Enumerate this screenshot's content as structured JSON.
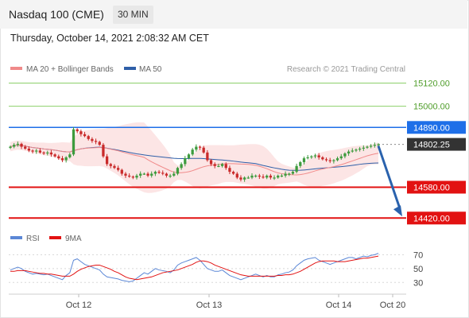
{
  "header": {
    "title": "Nasdaq 100 (CME)",
    "timeframe": "30 MIN"
  },
  "datetime": "Thursday, October 14, 2021 2:08:32 AM CET",
  "legend": {
    "ma20": "MA 20 + Bollinger Bands",
    "ma50": "MA 50",
    "credit": "Research © 2021 Trading Central"
  },
  "rsi_legend": {
    "rsi": "RSI",
    "ma9": "9MA"
  },
  "colors": {
    "resistance": "#1e6fe8",
    "support": "#e21212",
    "target_up": "#8ccf6a",
    "arrow": "#2a62ad",
    "price_tag": "#333333",
    "up_candle": "#3d9b3d",
    "down_candle": "#c92a2a",
    "bollinger": "#fbe0e0",
    "ma20": "#f08a8a",
    "ma50": "#2f5fa8"
  },
  "chart_data": {
    "type": "candlestick",
    "y_range": [
      14380,
      15155
    ],
    "levels": [
      {
        "value": 15120.0,
        "label": "15120.00",
        "kind": "target"
      },
      {
        "value": 15000.0,
        "label": "15000.00",
        "kind": "target"
      },
      {
        "value": 14890.0,
        "label": "14890.00",
        "kind": "resistance"
      },
      {
        "value": 14802.25,
        "label": "14802.25",
        "kind": "last_price"
      },
      {
        "value": 14580.0,
        "label": "14580.00",
        "kind": "support"
      },
      {
        "value": 14420.0,
        "label": "14420.00",
        "kind": "support"
      }
    ],
    "x_ticks": [
      "Oct 12",
      "Oct 13",
      "Oct 14",
      "Oct 20"
    ],
    "rsi_ticks": [
      70,
      50,
      30
    ],
    "rsi_range": [
      20,
      75
    ],
    "closes": [
      14790,
      14800,
      14805,
      14790,
      14780,
      14770,
      14765,
      14770,
      14760,
      14755,
      14760,
      14750,
      14740,
      14730,
      14720,
      14735,
      14750,
      14880,
      14870,
      14855,
      14845,
      14830,
      14820,
      14815,
      14800,
      14740,
      14700,
      14690,
      14680,
      14670,
      14650,
      14640,
      14635,
      14630,
      14640,
      14650,
      14650,
      14640,
      14650,
      14660,
      14655,
      14650,
      14640,
      14640,
      14650,
      14680,
      14700,
      14730,
      14750,
      14775,
      14790,
      14785,
      14760,
      14720,
      14700,
      14690,
      14690,
      14700,
      14680,
      14660,
      14650,
      14630,
      14620,
      14630,
      14630,
      14640,
      14640,
      14635,
      14630,
      14640,
      14630,
      14630,
      14640,
      14640,
      14650,
      14650,
      14660,
      14690,
      14710,
      14730,
      14735,
      14740,
      14745,
      14735,
      14725,
      14720,
      14715,
      14720,
      14730,
      14740,
      14755,
      14765,
      14770,
      14775,
      14780,
      14785,
      14790,
      14795,
      14800,
      14802.25
    ],
    "rsi": [
      48,
      50,
      52,
      50,
      46,
      44,
      42,
      43,
      42,
      41,
      42,
      40,
      38,
      36,
      34,
      40,
      44,
      62,
      64,
      60,
      56,
      54,
      52,
      50,
      48,
      42,
      38,
      37,
      36,
      35,
      33,
      32,
      31,
      32,
      36,
      40,
      44,
      42,
      46,
      50,
      48,
      47,
      46,
      44,
      48,
      55,
      58,
      60,
      62,
      64,
      66,
      62,
      56,
      50,
      48,
      46,
      46,
      48,
      44,
      40,
      38,
      36,
      34,
      36,
      38,
      40,
      42,
      40,
      38,
      40,
      38,
      38,
      41,
      42,
      44,
      45,
      48,
      54,
      58,
      62,
      64,
      65,
      66,
      62,
      60,
      58,
      56,
      58,
      60,
      62,
      64,
      66,
      66,
      64,
      66,
      68,
      67,
      69,
      70,
      72
    ],
    "rsi_ma9": [
      46,
      46,
      47,
      47,
      47,
      46,
      45,
      44,
      43,
      43,
      42,
      42,
      41,
      40,
      39,
      39,
      39,
      42,
      46,
      49,
      51,
      53,
      54,
      55,
      55,
      53,
      51,
      49,
      46,
      44,
      41,
      38,
      36,
      35,
      34,
      35,
      36,
      37,
      38,
      40,
      42,
      44,
      45,
      46,
      47,
      48,
      50,
      52,
      54,
      56,
      59,
      61,
      61,
      60,
      58,
      55,
      53,
      51,
      49,
      47,
      45,
      43,
      41,
      40,
      39,
      39,
      39,
      39,
      39,
      39,
      39,
      39,
      40,
      40,
      41,
      41,
      42,
      44,
      46,
      49,
      52,
      55,
      58,
      60,
      61,
      61,
      61,
      61,
      60,
      60,
      60,
      61,
      62,
      63,
      64,
      65,
      65,
      66,
      67,
      68
    ]
  }
}
